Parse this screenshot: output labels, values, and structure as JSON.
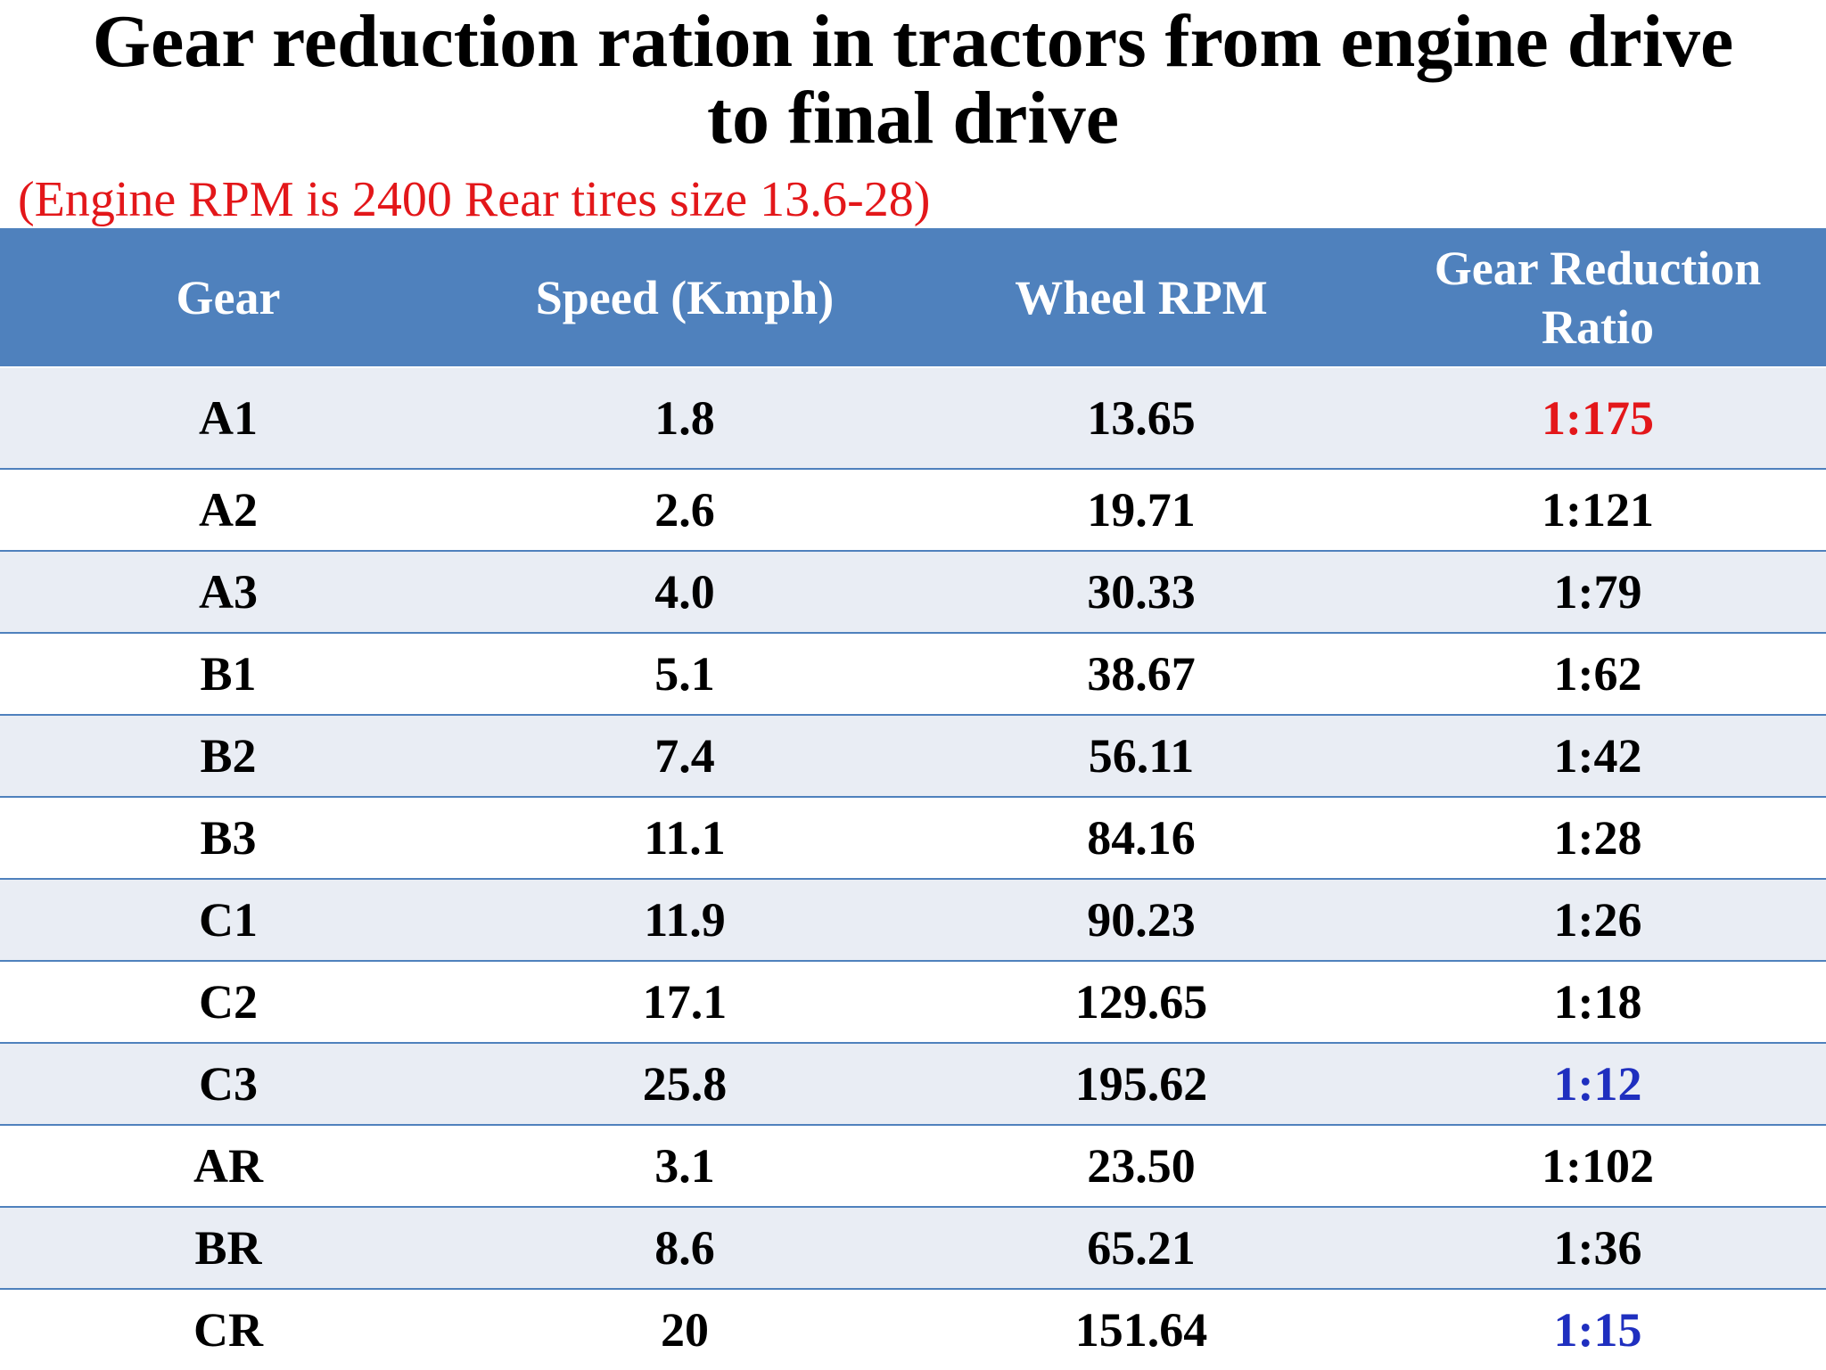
{
  "title_line1": "Gear reduction ration in tractors from engine drive",
  "title_line2": "to final drive",
  "subtitle": "(Engine RPM is 2400 Rear tires size 13.6-28)",
  "colors": {
    "header_background": "#4f81bd",
    "header_text": "#ffffff",
    "subtitle": "#e3171a",
    "highlight_red": "#e3171a",
    "highlight_blue": "#1f2fbf",
    "row_shade": "#e9edf4"
  },
  "table": {
    "headers": {
      "gear": "Gear",
      "speed": "Speed (Kmph)",
      "wheel_rpm": "Wheel RPM",
      "ratio": "Gear Reduction Ratio"
    },
    "rows": [
      {
        "gear": "A1",
        "speed": "1.8",
        "wheel_rpm": "13.65",
        "ratio": "1:175"
      },
      {
        "gear": "A2",
        "speed": "2.6",
        "wheel_rpm": "19.71",
        "ratio": "1:121"
      },
      {
        "gear": "A3",
        "speed": "4.0",
        "wheel_rpm": "30.33",
        "ratio": "1:79"
      },
      {
        "gear": "B1",
        "speed": "5.1",
        "wheel_rpm": "38.67",
        "ratio": "1:62"
      },
      {
        "gear": "B2",
        "speed": "7.4",
        "wheel_rpm": "56.11",
        "ratio": "1:42"
      },
      {
        "gear": "B3",
        "speed": "11.1",
        "wheel_rpm": "84.16",
        "ratio": "1:28"
      },
      {
        "gear": "C1",
        "speed": "11.9",
        "wheel_rpm": "90.23",
        "ratio": "1:26"
      },
      {
        "gear": "C2",
        "speed": "17.1",
        "wheel_rpm": "129.65",
        "ratio": "1:18"
      },
      {
        "gear": "C3",
        "speed": "25.8",
        "wheel_rpm": "195.62",
        "ratio": "1:12"
      },
      {
        "gear": "AR",
        "speed": "3.1",
        "wheel_rpm": "23.50",
        "ratio": "1:102"
      },
      {
        "gear": "BR",
        "speed": "8.6",
        "wheel_rpm": "65.21",
        "ratio": "1:36"
      },
      {
        "gear": "CR",
        "speed": "20",
        "wheel_rpm": "151.64",
        "ratio": "1:15"
      }
    ]
  }
}
